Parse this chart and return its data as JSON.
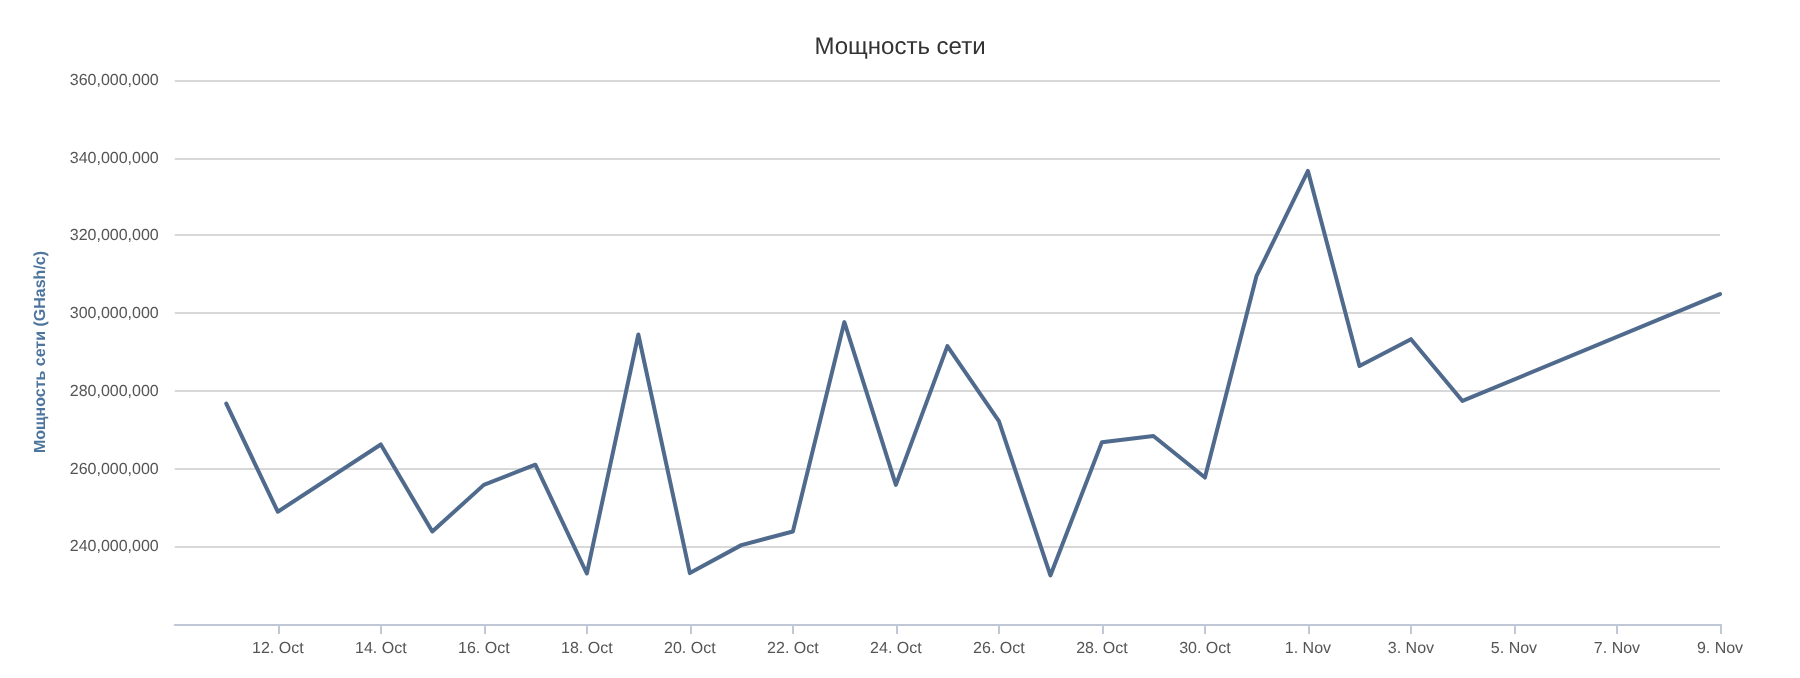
{
  "chart_data": {
    "type": "line",
    "title": "Мощность сети",
    "ylabel": "Мощность сети (GHash/с)",
    "x": [
      "--10-11",
      "--10-12",
      "--10-14",
      "--10-15",
      "--10-16",
      "--10-17",
      "--10-18",
      "--10-19",
      "--10-20",
      "--10-21",
      "--10-22",
      "--10-23",
      "--10-24",
      "--10-25",
      "--10-26",
      "--10-27",
      "--10-28",
      "--10-29",
      "--10-30",
      "--10-31",
      "--11-01",
      "--11-02",
      "--11-03",
      "--11-04",
      "--11-09"
    ],
    "series": [
      {
        "color": "#4f6a8c",
        "values": [
          276700000,
          248900000,
          266200000,
          243800000,
          255800000,
          261000000,
          233000000,
          294500000,
          233100000,
          240300000,
          243800000,
          297700000,
          255800000,
          291500000,
          272200000,
          232500000,
          266800000,
          268400000,
          257700000,
          309500000,
          336600000,
          286400000,
          293300000,
          277400000,
          304900000
        ]
      }
    ],
    "xlim": [
      "--10-10",
      "--11-09"
    ],
    "xticks": [
      {
        "value": "--10-12",
        "label": "12. Oct"
      },
      {
        "value": "--10-14",
        "label": "14. Oct"
      },
      {
        "value": "--10-16",
        "label": "16. Oct"
      },
      {
        "value": "--10-18",
        "label": "18. Oct"
      },
      {
        "value": "--10-20",
        "label": "20. Oct"
      },
      {
        "value": "--10-22",
        "label": "22. Oct"
      },
      {
        "value": "--10-24",
        "label": "24. Oct"
      },
      {
        "value": "--10-26",
        "label": "26. Oct"
      },
      {
        "value": "--10-28",
        "label": "28. Oct"
      },
      {
        "value": "--10-30",
        "label": "30. Oct"
      },
      {
        "value": "--11-01",
        "label": "1. Nov"
      },
      {
        "value": "--11-03",
        "label": "3. Nov"
      },
      {
        "value": "--11-05",
        "label": "5. Nov"
      },
      {
        "value": "--11-07",
        "label": "7. Nov"
      },
      {
        "value": "--11-09",
        "label": "9. Nov"
      }
    ],
    "ylim": [
      220000000,
      360000000
    ],
    "yticks": [
      {
        "value": 240000000,
        "label": "240,000,000"
      },
      {
        "value": 260000000,
        "label": "260,000,000"
      },
      {
        "value": 280000000,
        "label": "280,000,000"
      },
      {
        "value": 300000000,
        "label": "300,000,000"
      },
      {
        "value": 320000000,
        "label": "320,000,000"
      },
      {
        "value": 340000000,
        "label": "340,000,000"
      },
      {
        "value": 360000000,
        "label": "360,000,000"
      }
    ],
    "grid": "y",
    "marker": "none",
    "line_style": "solid"
  }
}
